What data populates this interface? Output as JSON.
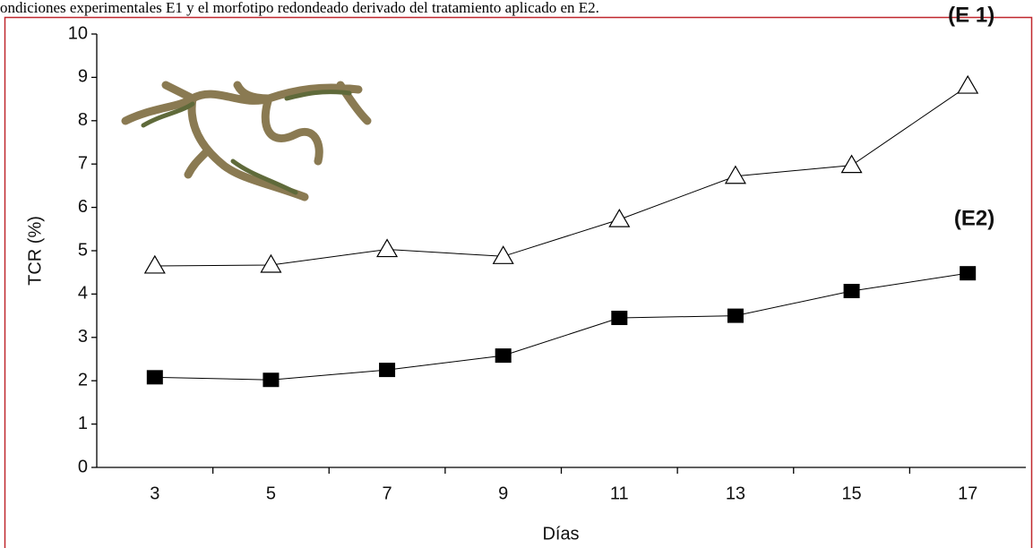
{
  "caption": "ondiciones experimentales E1 y el morfotipo redondeado derivado del tratamiento aplicado en E2.",
  "chart_data": {
    "type": "line",
    "xlabel": "Días",
    "ylabel": "TCR (%)",
    "categories": [
      "3",
      "5",
      "7",
      "9",
      "11",
      "13",
      "15",
      "17"
    ],
    "series": [
      {
        "name": "(E 1)",
        "color": "#ffffff",
        "marker": "triangle",
        "values": [
          4.65,
          4.67,
          5.03,
          4.87,
          5.72,
          6.72,
          6.97,
          8.8
        ]
      },
      {
        "name": "(E2)",
        "color": "#000000",
        "marker": "square",
        "values": [
          2.08,
          2.02,
          2.25,
          2.58,
          3.45,
          3.5,
          4.07,
          4.48
        ]
      }
    ],
    "ylim": [
      0,
      10
    ],
    "yticks": [
      0,
      1,
      2,
      3,
      4,
      5,
      6,
      7,
      8,
      9,
      10
    ]
  }
}
